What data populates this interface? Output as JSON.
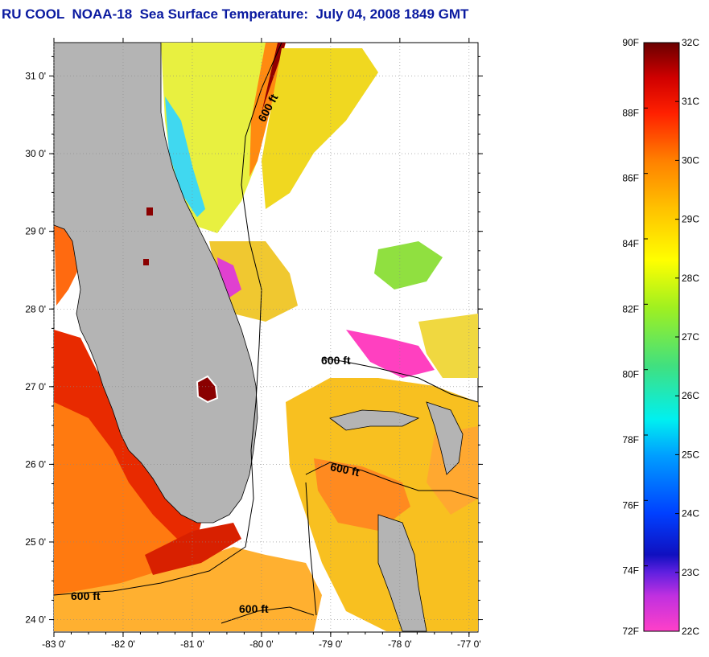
{
  "title": "RU COOL  NOAA-18  Sea Surface Temperature:  July 04, 2008 1849 GMT",
  "map": {
    "lon_range": [
      -83,
      -76.87
    ],
    "lat_range": [
      23.84,
      31.43
    ],
    "x_ticks": [
      "-83 0'",
      "-82 0'",
      "-81 0'",
      "-80 0'",
      "-79 0'",
      "-78 0'",
      "-77 0'"
    ],
    "y_ticks": [
      "31 0'",
      "30 0'",
      "29 0'",
      "28 0'",
      "27 0'",
      "26 0'",
      "25 0'",
      "24 0'"
    ],
    "contour_label": "600 ft",
    "land_color": "#b4b4b4",
    "grid": "dotted"
  },
  "colorbar": {
    "fahrenheit": [
      "90F",
      "88F",
      "86F",
      "84F",
      "82F",
      "80F",
      "78F",
      "76F",
      "74F",
      "72F"
    ],
    "celsius": [
      "32C",
      "31C",
      "30C",
      "29C",
      "28C",
      "27C",
      "26C",
      "25C",
      "24C",
      "23C",
      "22C"
    ],
    "gradient": [
      "#ff3fc0",
      "#9020e0",
      "#2010c0",
      "#0050ff",
      "#00c0ff",
      "#00e0c0",
      "#40e040",
      "#c0f000",
      "#ffff00",
      "#ffc000",
      "#ff8000",
      "#ff3000",
      "#e00000",
      "#a00000",
      "#700000"
    ]
  }
}
